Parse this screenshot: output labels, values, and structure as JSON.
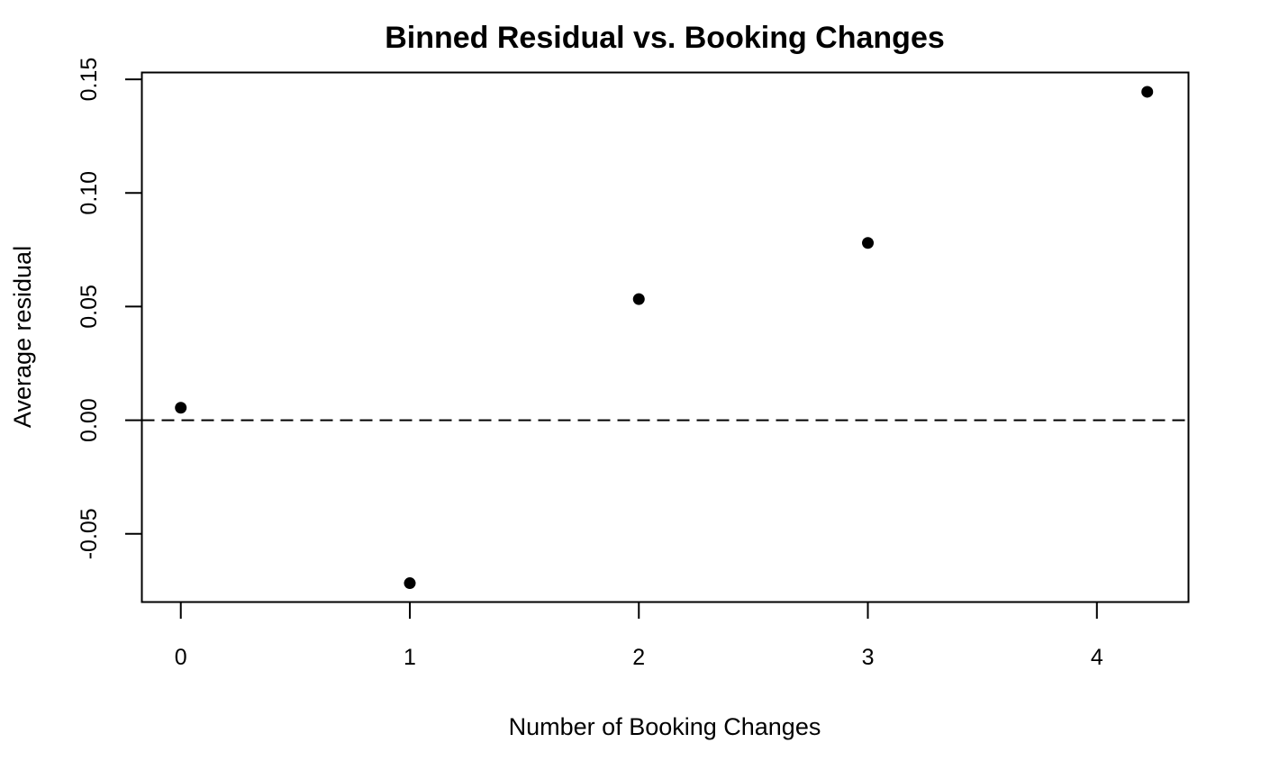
{
  "chart_data": {
    "type": "scatter",
    "title": "Binned Residual vs. Booking Changes",
    "xlabel": "Number of Booking Changes",
    "ylabel": "Average residual",
    "xlim": [
      -0.17,
      4.4
    ],
    "ylim": [
      -0.08,
      0.153
    ],
    "x_ticks": [
      0,
      1,
      2,
      3,
      4
    ],
    "x_tick_labels": [
      "0",
      "1",
      "2",
      "3",
      "4"
    ],
    "y_ticks": [
      -0.05,
      0.0,
      0.05,
      0.1,
      0.15
    ],
    "y_tick_labels": [
      "-0.05",
      "0.00",
      "0.05",
      "0.10",
      "0.15"
    ],
    "points": [
      {
        "x": 0.0,
        "y": 0.0055
      },
      {
        "x": 1.0,
        "y": -0.0717
      },
      {
        "x": 2.0,
        "y": 0.0533
      },
      {
        "x": 3.0,
        "y": 0.078
      },
      {
        "x": 4.22,
        "y": 0.1445
      }
    ],
    "reference_line": {
      "y": 0.0,
      "style": "dashed"
    },
    "grid": false,
    "legend": "none",
    "point_color": "#000000"
  }
}
